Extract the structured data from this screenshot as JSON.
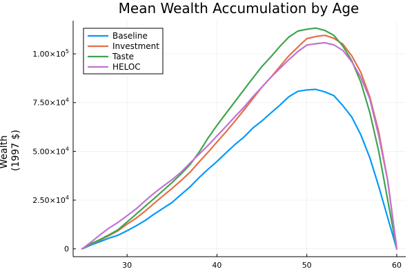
{
  "chart_data": {
    "type": "line",
    "title": "Mean Wealth Accumulation by Age",
    "xlabel": "",
    "ylabel_lines": [
      "Wealth",
      "(1997 $)"
    ],
    "xlim": [
      24,
      61
    ],
    "ylim": [
      -4000,
      117000
    ],
    "xticks": [
      30,
      40,
      50,
      60
    ],
    "xtick_labels": [
      "30",
      "40",
      "50",
      "60"
    ],
    "yticks": [
      0,
      25000,
      50000,
      75000,
      100000
    ],
    "ytick_labels": [
      {
        "mantissa": "0",
        "exp": ""
      },
      {
        "mantissa": "2.50×10",
        "exp": "4"
      },
      {
        "mantissa": "5.00×10",
        "exp": "4"
      },
      {
        "mantissa": "7.50×10",
        "exp": "4"
      },
      {
        "mantissa": "1.00×10",
        "exp": "5"
      }
    ],
    "grid": true,
    "legend_position": "top-left",
    "x": [
      25,
      26,
      27,
      28,
      29,
      30,
      31,
      32,
      33,
      34,
      35,
      36,
      37,
      38,
      39,
      40,
      41,
      42,
      43,
      44,
      45,
      46,
      47,
      48,
      49,
      50,
      51,
      52,
      53,
      54,
      55,
      56,
      57,
      58,
      59,
      60
    ],
    "series": [
      {
        "name": "Baseline",
        "color": "#009AFA",
        "values": [
          0,
          2000,
          3700,
          5500,
          7000,
          9300,
          11800,
          14500,
          17800,
          20800,
          23800,
          27800,
          31800,
          36500,
          40800,
          44800,
          49200,
          53500,
          57300,
          62000,
          65600,
          69700,
          73700,
          78000,
          80800,
          81500,
          81800,
          80500,
          78600,
          73500,
          67600,
          58500,
          46800,
          32000,
          16000,
          0
        ]
      },
      {
        "name": "Investment",
        "color": "#E36F47",
        "values": [
          0,
          2500,
          4500,
          6800,
          9300,
          12700,
          15700,
          19300,
          23300,
          27200,
          31000,
          35000,
          39300,
          44500,
          49500,
          54800,
          60000,
          65500,
          71200,
          77000,
          83000,
          88000,
          93500,
          99000,
          103500,
          107800,
          108900,
          109500,
          108000,
          105000,
          99000,
          90500,
          78000,
          60000,
          35000,
          0
        ]
      },
      {
        "name": "Taste",
        "color": "#3EA44E",
        "values": [
          0,
          2700,
          4800,
          7200,
          9800,
          13800,
          17800,
          21800,
          25800,
          29900,
          34000,
          38400,
          43200,
          49500,
          56800,
          63300,
          69500,
          75500,
          81600,
          87600,
          93500,
          98500,
          103800,
          108600,
          111700,
          112600,
          113200,
          112000,
          109500,
          104000,
          96500,
          85500,
          70000,
          50000,
          25000,
          0
        ]
      },
      {
        "name": "HELOC",
        "color": "#C271D2",
        "values": [
          0,
          3500,
          7200,
          10700,
          13600,
          17000,
          20500,
          24600,
          28500,
          32100,
          35500,
          39300,
          44000,
          48500,
          53000,
          57900,
          62800,
          67800,
          72600,
          78000,
          83000,
          88000,
          92500,
          97000,
          101200,
          104500,
          105200,
          105700,
          104600,
          101800,
          96000,
          88000,
          77000,
          58000,
          35000,
          0
        ]
      }
    ]
  }
}
